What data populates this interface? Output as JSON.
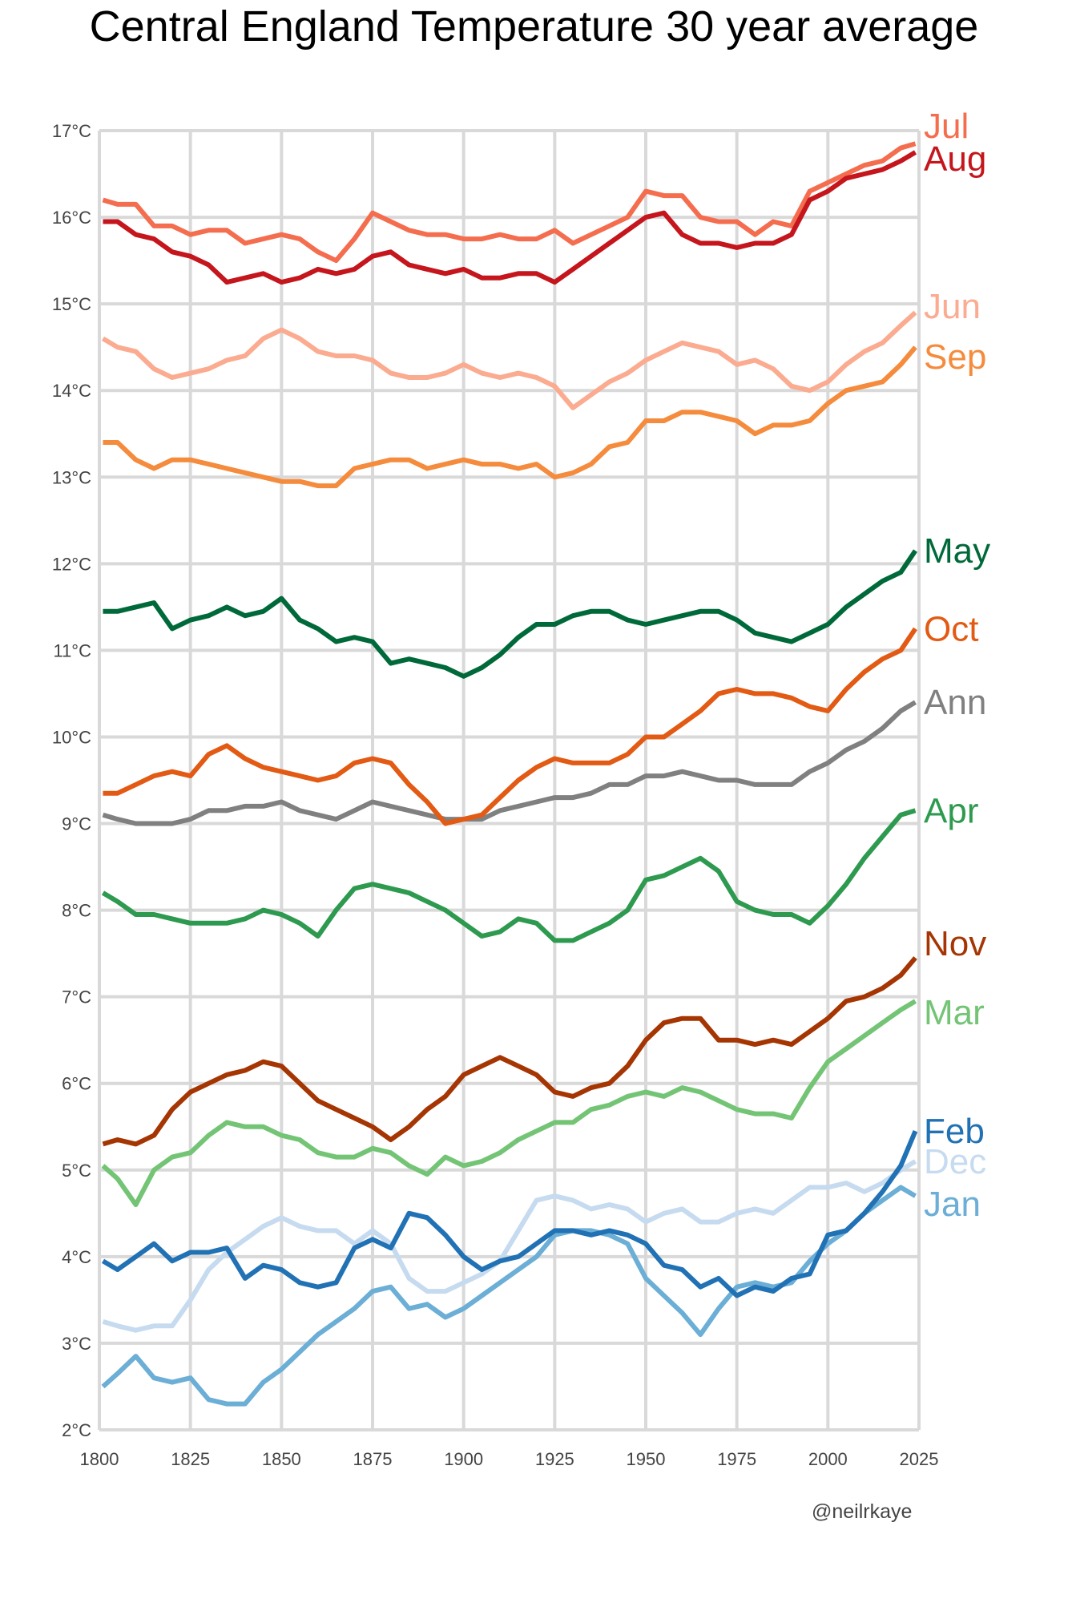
{
  "chart_data": {
    "type": "line",
    "title": "Central England Temperature 30 year average",
    "xlabel": "",
    "ylabel": "",
    "credit": "@neilrkaye",
    "xlim": [
      1800,
      2025
    ],
    "ylim": [
      2,
      17
    ],
    "grid": true,
    "legend": "direct labels at right end of lines",
    "x_ticks": [
      "1800",
      "1825",
      "1850",
      "1875",
      "1900",
      "1925",
      "1950",
      "1975",
      "2000",
      "2025"
    ],
    "x_tick_values": [
      1800,
      1825,
      1850,
      1875,
      1900,
      1925,
      1950,
      1975,
      2000,
      2025
    ],
    "y_ticks": [
      "2°C",
      "3°C",
      "4°C",
      "5°C",
      "6°C",
      "7°C",
      "8°C",
      "9°C",
      "10°C",
      "11°C",
      "12°C",
      "13°C",
      "14°C",
      "15°C",
      "16°C",
      "17°C"
    ],
    "y_tick_values": [
      2,
      3,
      4,
      5,
      6,
      7,
      8,
      9,
      10,
      11,
      12,
      13,
      14,
      15,
      16,
      17
    ],
    "x": [
      1801,
      1805,
      1810,
      1815,
      1820,
      1825,
      1830,
      1835,
      1840,
      1845,
      1850,
      1855,
      1860,
      1865,
      1870,
      1875,
      1880,
      1885,
      1890,
      1895,
      1900,
      1905,
      1910,
      1915,
      1920,
      1925,
      1930,
      1935,
      1940,
      1945,
      1950,
      1955,
      1960,
      1965,
      1970,
      1975,
      1980,
      1985,
      1990,
      1995,
      2000,
      2005,
      2010,
      2015,
      2020,
      2024
    ],
    "series": [
      {
        "name": "Jul",
        "color": "#f46d4e",
        "values": [
          16.2,
          16.15,
          16.15,
          15.9,
          15.9,
          15.8,
          15.85,
          15.85,
          15.7,
          15.75,
          15.8,
          15.75,
          15.6,
          15.5,
          15.75,
          16.05,
          15.95,
          15.85,
          15.8,
          15.8,
          15.75,
          15.75,
          15.8,
          15.75,
          15.75,
          15.85,
          15.7,
          15.8,
          15.9,
          16.0,
          16.3,
          16.25,
          16.25,
          16.0,
          15.95,
          15.95,
          15.8,
          15.95,
          15.9,
          16.3,
          16.4,
          16.5,
          16.6,
          16.65,
          16.8,
          16.85
        ]
      },
      {
        "name": "Aug",
        "color": "#c4161c",
        "values": [
          15.95,
          15.95,
          15.8,
          15.75,
          15.6,
          15.55,
          15.45,
          15.25,
          15.3,
          15.35,
          15.25,
          15.3,
          15.4,
          15.35,
          15.4,
          15.55,
          15.6,
          15.45,
          15.4,
          15.35,
          15.4,
          15.3,
          15.3,
          15.35,
          15.35,
          15.25,
          15.4,
          15.55,
          15.7,
          15.85,
          16.0,
          16.05,
          15.8,
          15.7,
          15.7,
          15.65,
          15.7,
          15.7,
          15.8,
          16.2,
          16.3,
          16.45,
          16.5,
          16.55,
          16.65,
          16.75
        ]
      },
      {
        "name": "Jun",
        "color": "#fbab90",
        "values": [
          14.6,
          14.5,
          14.45,
          14.25,
          14.15,
          14.2,
          14.25,
          14.35,
          14.4,
          14.6,
          14.7,
          14.6,
          14.45,
          14.4,
          14.4,
          14.35,
          14.2,
          14.15,
          14.15,
          14.2,
          14.3,
          14.2,
          14.15,
          14.2,
          14.15,
          14.05,
          13.8,
          13.95,
          14.1,
          14.2,
          14.35,
          14.45,
          14.55,
          14.5,
          14.45,
          14.3,
          14.35,
          14.25,
          14.05,
          14.0,
          14.1,
          14.3,
          14.45,
          14.55,
          14.75,
          14.9
        ]
      },
      {
        "name": "Sep",
        "color": "#f58b3c",
        "values": [
          13.4,
          13.4,
          13.2,
          13.1,
          13.2,
          13.2,
          13.15,
          13.1,
          13.05,
          13.0,
          12.95,
          12.95,
          12.9,
          12.9,
          13.1,
          13.15,
          13.2,
          13.2,
          13.1,
          13.15,
          13.2,
          13.15,
          13.15,
          13.1,
          13.15,
          13.0,
          13.05,
          13.15,
          13.35,
          13.4,
          13.65,
          13.65,
          13.75,
          13.75,
          13.7,
          13.65,
          13.5,
          13.6,
          13.6,
          13.65,
          13.85,
          14.0,
          14.05,
          14.1,
          14.3,
          14.5
        ]
      },
      {
        "name": "May",
        "color": "#00693a",
        "values": [
          11.45,
          11.45,
          11.5,
          11.55,
          11.25,
          11.35,
          11.4,
          11.5,
          11.4,
          11.45,
          11.6,
          11.35,
          11.25,
          11.1,
          11.15,
          11.1,
          10.85,
          10.9,
          10.85,
          10.8,
          10.7,
          10.8,
          10.95,
          11.15,
          11.3,
          11.3,
          11.4,
          11.45,
          11.45,
          11.35,
          11.3,
          11.35,
          11.4,
          11.45,
          11.45,
          11.35,
          11.2,
          11.15,
          11.1,
          11.2,
          11.3,
          11.5,
          11.65,
          11.8,
          11.9,
          12.15
        ]
      },
      {
        "name": "Oct",
        "color": "#e25a13",
        "values": [
          9.35,
          9.35,
          9.45,
          9.55,
          9.6,
          9.55,
          9.8,
          9.9,
          9.75,
          9.65,
          9.6,
          9.55,
          9.5,
          9.55,
          9.7,
          9.75,
          9.7,
          9.45,
          9.25,
          9.0,
          9.05,
          9.1,
          9.3,
          9.5,
          9.65,
          9.75,
          9.7,
          9.7,
          9.7,
          9.8,
          10.0,
          10.0,
          10.15,
          10.3,
          10.5,
          10.55,
          10.5,
          10.5,
          10.45,
          10.35,
          10.3,
          10.55,
          10.75,
          10.9,
          11.0,
          11.25
        ]
      },
      {
        "name": "Ann",
        "color": "#808080",
        "values": [
          9.1,
          9.05,
          9.0,
          9.0,
          9.0,
          9.05,
          9.15,
          9.15,
          9.2,
          9.2,
          9.25,
          9.15,
          9.1,
          9.05,
          9.15,
          9.25,
          9.2,
          9.15,
          9.1,
          9.05,
          9.05,
          9.05,
          9.15,
          9.2,
          9.25,
          9.3,
          9.3,
          9.35,
          9.45,
          9.45,
          9.55,
          9.55,
          9.6,
          9.55,
          9.5,
          9.5,
          9.45,
          9.45,
          9.45,
          9.6,
          9.7,
          9.85,
          9.95,
          10.1,
          10.3,
          10.4
        ]
      },
      {
        "name": "Apr",
        "color": "#2e9a50",
        "values": [
          8.2,
          8.1,
          7.95,
          7.95,
          7.9,
          7.85,
          7.85,
          7.85,
          7.9,
          8.0,
          7.95,
          7.85,
          7.7,
          8.0,
          8.25,
          8.3,
          8.25,
          8.2,
          8.1,
          8.0,
          7.85,
          7.7,
          7.75,
          7.9,
          7.85,
          7.65,
          7.65,
          7.75,
          7.85,
          8.0,
          8.35,
          8.4,
          8.5,
          8.6,
          8.45,
          8.1,
          8.0,
          7.95,
          7.95,
          7.85,
          8.05,
          8.3,
          8.6,
          8.85,
          9.1,
          9.15
        ]
      },
      {
        "name": "Nov",
        "color": "#a53603",
        "values": [
          5.3,
          5.35,
          5.3,
          5.4,
          5.7,
          5.9,
          6.0,
          6.1,
          6.15,
          6.25,
          6.2,
          6.0,
          5.8,
          5.7,
          5.6,
          5.5,
          5.35,
          5.5,
          5.7,
          5.85,
          6.1,
          6.2,
          6.3,
          6.2,
          6.1,
          5.9,
          5.85,
          5.95,
          6.0,
          6.2,
          6.5,
          6.7,
          6.75,
          6.75,
          6.5,
          6.5,
          6.45,
          6.5,
          6.45,
          6.6,
          6.75,
          6.95,
          7.0,
          7.1,
          7.25,
          7.45
        ]
      },
      {
        "name": "Mar",
        "color": "#74c476",
        "values": [
          5.05,
          4.9,
          4.6,
          5.0,
          5.15,
          5.2,
          5.4,
          5.55,
          5.5,
          5.5,
          5.4,
          5.35,
          5.2,
          5.15,
          5.15,
          5.25,
          5.2,
          5.05,
          4.95,
          5.15,
          5.05,
          5.1,
          5.2,
          5.35,
          5.45,
          5.55,
          5.55,
          5.7,
          5.75,
          5.85,
          5.9,
          5.85,
          5.95,
          5.9,
          5.8,
          5.7,
          5.65,
          5.65,
          5.6,
          5.95,
          6.25,
          6.4,
          6.55,
          6.7,
          6.85,
          6.95
        ]
      },
      {
        "name": "Feb",
        "color": "#2171b5",
        "values": [
          3.95,
          3.85,
          4.0,
          4.15,
          3.95,
          4.05,
          4.05,
          4.1,
          3.75,
          3.9,
          3.85,
          3.7,
          3.65,
          3.7,
          4.1,
          4.2,
          4.1,
          4.5,
          4.45,
          4.25,
          4.0,
          3.85,
          3.95,
          4.0,
          4.15,
          4.3,
          4.3,
          4.25,
          4.3,
          4.25,
          4.15,
          3.9,
          3.85,
          3.65,
          3.75,
          3.55,
          3.65,
          3.6,
          3.75,
          3.8,
          4.25,
          4.3,
          4.5,
          4.75,
          5.05,
          5.45
        ]
      },
      {
        "name": "Dec",
        "color": "#c6dbef",
        "values": [
          3.25,
          3.2,
          3.15,
          3.2,
          3.2,
          3.5,
          3.85,
          4.05,
          4.2,
          4.35,
          4.45,
          4.35,
          4.3,
          4.3,
          4.15,
          4.3,
          4.15,
          3.75,
          3.6,
          3.6,
          3.7,
          3.8,
          3.95,
          4.3,
          4.65,
          4.7,
          4.65,
          4.55,
          4.6,
          4.55,
          4.4,
          4.5,
          4.55,
          4.4,
          4.4,
          4.5,
          4.55,
          4.5,
          4.65,
          4.8,
          4.8,
          4.85,
          4.75,
          4.85,
          5.0,
          5.1
        ]
      },
      {
        "name": "Jan",
        "color": "#6baed6",
        "values": [
          2.5,
          2.65,
          2.85,
          2.6,
          2.55,
          2.6,
          2.35,
          2.3,
          2.3,
          2.55,
          2.7,
          2.9,
          3.1,
          3.25,
          3.4,
          3.6,
          3.65,
          3.4,
          3.45,
          3.3,
          3.4,
          3.55,
          3.7,
          3.85,
          4.0,
          4.25,
          4.3,
          4.3,
          4.25,
          4.15,
          3.75,
          3.55,
          3.35,
          3.1,
          3.4,
          3.65,
          3.7,
          3.65,
          3.7,
          3.95,
          4.15,
          4.3,
          4.5,
          4.65,
          4.8,
          4.7
        ]
      }
    ]
  }
}
